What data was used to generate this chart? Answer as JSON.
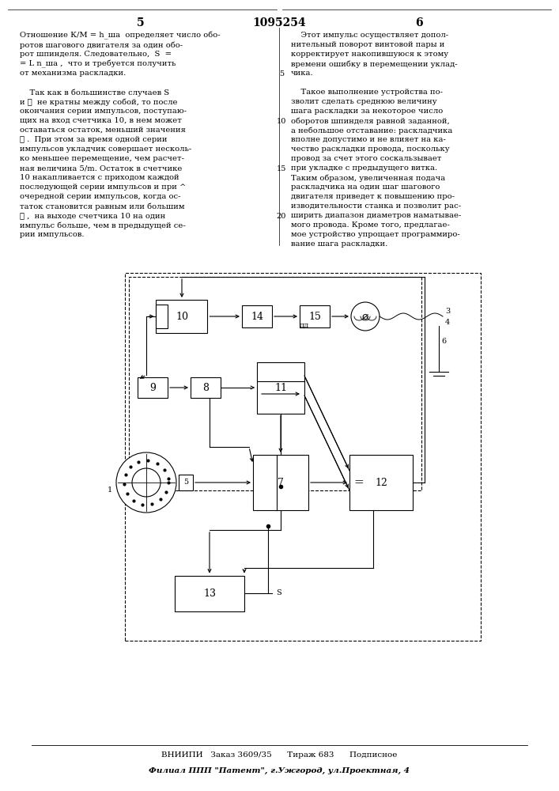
{
  "title": "1095254",
  "page_left": "5",
  "page_right": "6",
  "bg_color": "#ffffff",
  "left_col_lines": [
    "Отношение К/М = h_ша  определяет число обо-",
    "ротов шагового двигателя за один обо-",
    "рот шпинделя. Следовательно,  S  =",
    "= L n_ша ,  что и требуется получить",
    "от механизма раскладки.",
    "",
    "    Так как в большинстве случаев S",
    "и ℓ  не кратны между собой, то после",
    "окончания серии импульсов, поступаю-",
    "щих на вход счетчика 10, в нем может",
    "оставаться остаток, меньший значения",
    "ℓ .  При этом за время одной серии",
    "импульсов укладчик совершает несколь-",
    "ко меньшее перемещение, чем расчет-",
    "ная величина 5/m. Остаток в счетчике",
    "10 накапливается с приходом каждой",
    "последующей серии импульсов и при ^",
    "очередной серии импульсов, когда ос-",
    "таток становится равным или большим",
    "ℓ ,  на выходе счетчика 10 на один",
    "импульс больше, чем в предыдущей се-",
    "рии импульсов."
  ],
  "right_col_lines": [
    "    Этот импульс осуществляет допол-",
    "нительный поворот винтовой пары и",
    "корректирует накопившуюся к этому",
    "времени ошибку в перемещении уклад-",
    "чика.",
    "",
    "    Такое выполнение устройства по-",
    "зволит сделать среднюю величину",
    "шага раскладки за некоторое число",
    "оборотов шпинделя равной заданной,",
    "а небольшое отставание: раскладчика",
    "вполне допустимо и не влияет на ка-",
    "чество раскладки провода, поскольку",
    "провод за счет этого соскальзывает",
    "при укладке с предыдущего витка.",
    "Таким образом, увеличенная подача",
    "раскладчика на один шаг шагового",
    "двигателя приведет к повышению про-",
    "изводительности станка и позволит рас-",
    "ширить диапазон диаметров наматывае-",
    "мого провода. Кроме того, предлагае-",
    "мое устройство упрощает программиро-",
    "вание шага раскладки."
  ],
  "line_numbers": [
    [
      5,
      4
    ],
    [
      10,
      9
    ],
    [
      15,
      14
    ],
    [
      20,
      19
    ]
  ],
  "footer1": "ВНИИПИ   Заказ 3609/35      Тираж 683      Подписное",
  "footer2": "Филиал ППП \"Патент\", г.Ужгород, ул.Проектная, 4"
}
